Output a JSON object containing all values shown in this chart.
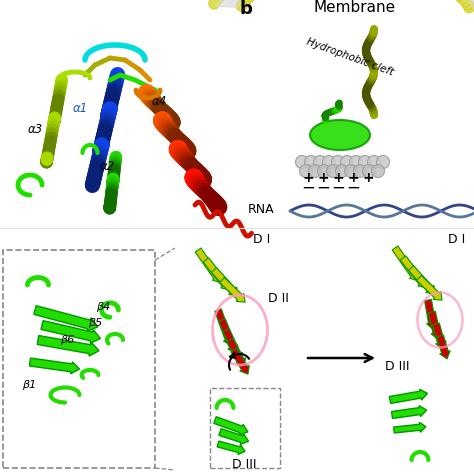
{
  "title_b": "b",
  "membrane_label": "Membrane",
  "hydrophobic_label": "Hydrophobic cleft",
  "rna_label": "RNA",
  "alpha_labels": [
    "α3",
    "α1",
    "α2",
    "α4"
  ],
  "beta_labels": [
    "β4",
    "β5",
    "β6",
    "β1"
  ],
  "di_label": "D I",
  "dii_label": "D II",
  "diii_label": "D III",
  "bg_color": "#ffffff",
  "cyan_color": "#00dddd",
  "blue_color": "#1144ee",
  "green_color": "#22dd00",
  "yellow_green": "#aadd00",
  "orange_color": "#dd7700",
  "red_color": "#cc1100",
  "olive_color": "#99aa00",
  "membrane_yellow": "#dddd55",
  "membrane_gray": "#cccccc",
  "rna_color1": "#336699",
  "rna_color2": "#557799",
  "pink_color": "#ff99bb",
  "dark_green": "#009900"
}
